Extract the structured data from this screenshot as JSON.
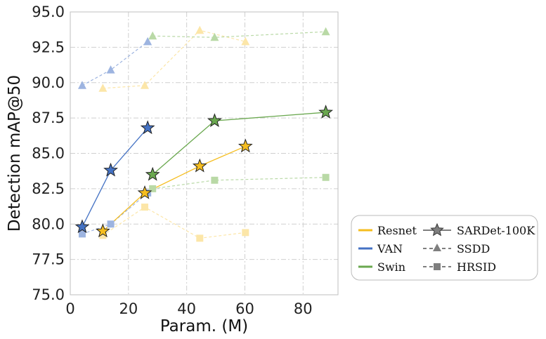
{
  "chart_data": {
    "type": "line",
    "xlabel": "Param. (M)",
    "ylabel": "Detection mAP@50",
    "xlim": [
      0,
      92
    ],
    "ylim": [
      75.0,
      95.0
    ],
    "xticks": [
      0,
      20,
      40,
      60,
      80
    ],
    "yticks": [
      75.0,
      77.5,
      80.0,
      82.5,
      85.0,
      87.5,
      90.0,
      92.5,
      95.0
    ],
    "xtick_labels": [
      "0",
      "20",
      "40",
      "60",
      "80"
    ],
    "ytick_labels": [
      "75.0",
      "77.5",
      "80.0",
      "82.5",
      "85.0",
      "87.5",
      "90.0",
      "92.5",
      "95.0"
    ],
    "grid": true,
    "colors": {
      "Resnet": "#f5bd1f",
      "VAN": "#4472c4",
      "Swin": "#6aa84f",
      "neutral": "#7f7f7f"
    },
    "series": [
      {
        "name": "VAN SARDet-100K",
        "model": "VAN",
        "dataset": "SARDet-100K",
        "x": [
          4.1,
          13.9,
          26.6
        ],
        "y": [
          79.8,
          83.8,
          86.8
        ]
      },
      {
        "name": "VAN SSDD",
        "model": "VAN",
        "dataset": "SSDD",
        "x": [
          4.1,
          13.9,
          26.6
        ],
        "y": [
          89.8,
          90.9,
          92.9
        ]
      },
      {
        "name": "VAN HRSID",
        "model": "VAN",
        "dataset": "HRSID",
        "x": [
          4.1,
          13.9,
          26.6
        ],
        "y": [
          79.3,
          80.0,
          82.2
        ]
      },
      {
        "name": "Resnet SARDet-100K",
        "model": "Resnet",
        "dataset": "SARDet-100K",
        "x": [
          11.2,
          25.6,
          44.5,
          60.2
        ],
        "y": [
          79.5,
          82.2,
          84.1,
          85.5
        ]
      },
      {
        "name": "Resnet SSDD",
        "model": "Resnet",
        "dataset": "SSDD",
        "x": [
          11.2,
          25.6,
          44.5,
          60.2
        ],
        "y": [
          89.6,
          89.8,
          93.7,
          92.9
        ]
      },
      {
        "name": "Resnet HRSID",
        "model": "Resnet",
        "dataset": "HRSID",
        "x": [
          11.2,
          25.6,
          44.5,
          60.2
        ],
        "y": [
          79.2,
          81.2,
          79.0,
          79.4
        ]
      },
      {
        "name": "Swin SARDet-100K",
        "model": "Swin",
        "dataset": "SARDet-100K",
        "x": [
          28.3,
          49.6,
          87.8
        ],
        "y": [
          83.5,
          87.3,
          87.9
        ]
      },
      {
        "name": "Swin SSDD",
        "model": "Swin",
        "dataset": "SSDD",
        "x": [
          28.3,
          49.6,
          87.8
        ],
        "y": [
          93.3,
          93.2,
          93.6
        ]
      },
      {
        "name": "Swin HRSID",
        "model": "Swin",
        "dataset": "HRSID",
        "x": [
          28.3,
          49.6,
          87.8
        ],
        "y": [
          82.5,
          83.1,
          83.3
        ]
      }
    ],
    "legend": {
      "placement": "bottom-right, outside plot",
      "models": [
        "Resnet",
        "VAN",
        "Swin"
      ],
      "datasets": [
        "SARDet-100K",
        "SSDD",
        "HRSID"
      ]
    }
  }
}
